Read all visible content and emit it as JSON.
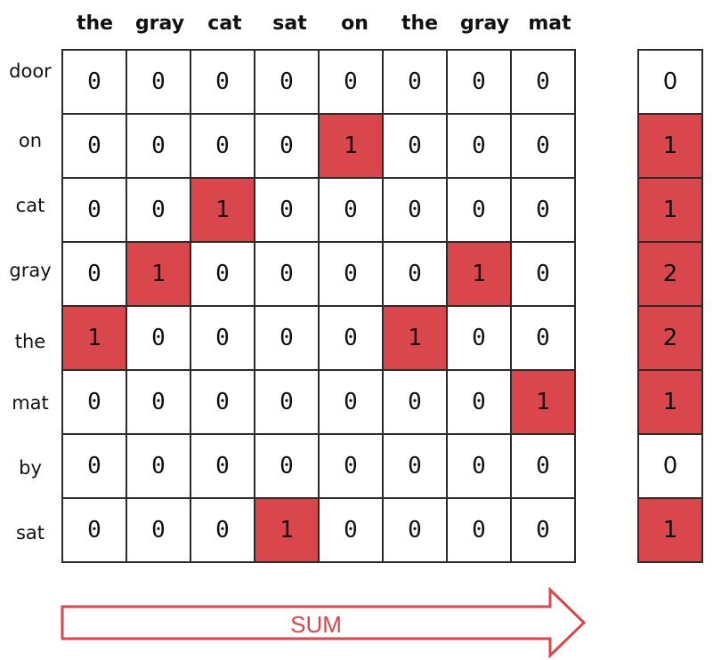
{
  "columns": [
    "the",
    "gray",
    "cat",
    "sat",
    "on",
    "the",
    "gray",
    "mat"
  ],
  "rows": [
    "door",
    "on",
    "cat",
    "gray",
    "the",
    "mat",
    "by",
    "sat"
  ],
  "matrix": [
    [
      0,
      0,
      0,
      0,
      0,
      0,
      0,
      0
    ],
    [
      0,
      0,
      0,
      0,
      1,
      0,
      0,
      0
    ],
    [
      0,
      0,
      1,
      0,
      0,
      0,
      0,
      0
    ],
    [
      0,
      1,
      0,
      0,
      0,
      0,
      1,
      0
    ],
    [
      1,
      0,
      0,
      0,
      0,
      1,
      0,
      0
    ],
    [
      0,
      0,
      0,
      0,
      0,
      0,
      0,
      1
    ],
    [
      0,
      0,
      0,
      0,
      0,
      0,
      0,
      0
    ],
    [
      0,
      0,
      0,
      1,
      0,
      0,
      0,
      0
    ]
  ],
  "sums": [
    0,
    1,
    1,
    2,
    2,
    1,
    0,
    1
  ],
  "arrow_label": "SUM",
  "colors": {
    "highlight": "#d9474c",
    "grid": "#2b2b2b",
    "arrow": "#d9474c"
  }
}
